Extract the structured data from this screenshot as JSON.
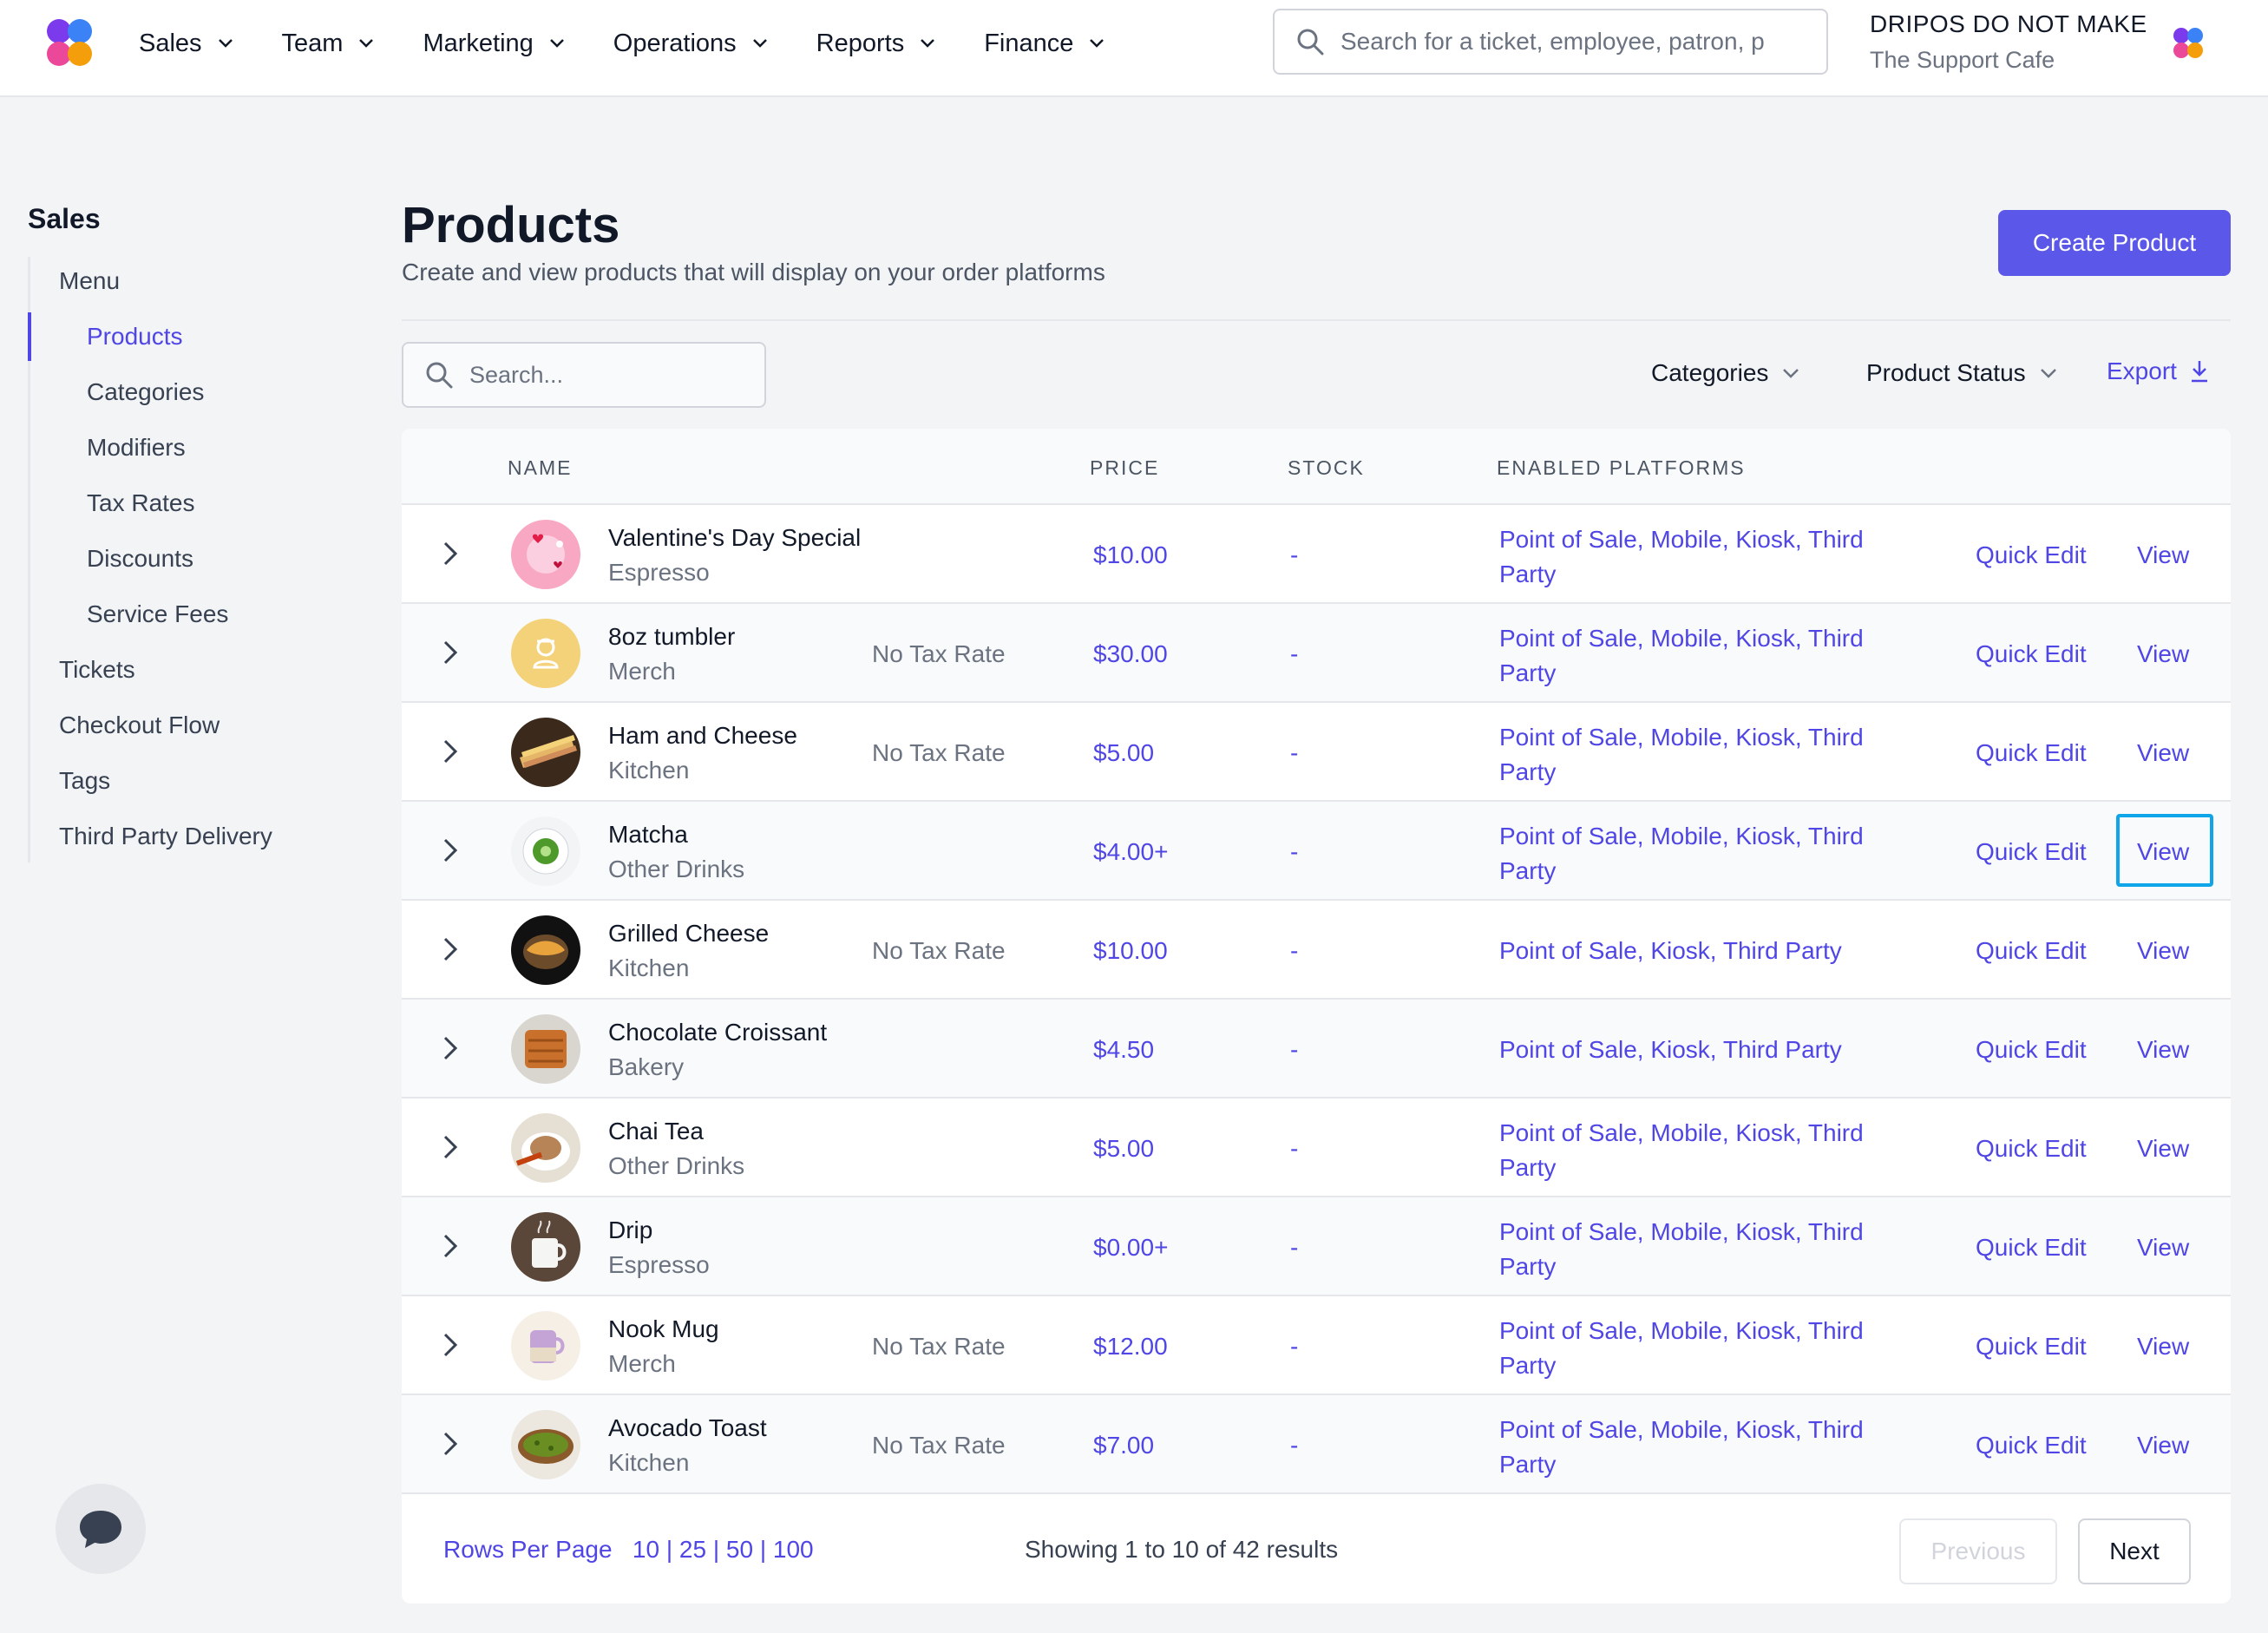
{
  "nav": {
    "items": [
      {
        "label": "Sales"
      },
      {
        "label": "Team"
      },
      {
        "label": "Marketing"
      },
      {
        "label": "Operations"
      },
      {
        "label": "Reports"
      },
      {
        "label": "Finance"
      }
    ],
    "search_placeholder": "Search for a ticket, employee, patron, p",
    "account_name": "DRIPOS DO NOT MAKE",
    "account_location": "The Support Cafe"
  },
  "sidebar": {
    "title": "Sales",
    "items": [
      {
        "label": "Menu"
      },
      {
        "label": "Products"
      },
      {
        "label": "Categories"
      },
      {
        "label": "Modifiers"
      },
      {
        "label": "Tax Rates"
      },
      {
        "label": "Discounts"
      },
      {
        "label": "Service Fees"
      },
      {
        "label": "Tickets"
      },
      {
        "label": "Checkout Flow"
      },
      {
        "label": "Tags"
      },
      {
        "label": "Third Party Delivery"
      }
    ]
  },
  "page": {
    "title": "Products",
    "subtitle": "Create and view products that will display on your order platforms",
    "create_label": "Create Product",
    "search_placeholder": "Search...",
    "filter_categories": "Categories",
    "filter_status": "Product Status",
    "export_label": "Export"
  },
  "table": {
    "headers": {
      "name": "NAME",
      "price": "PRICE",
      "stock": "STOCK",
      "platforms": "ENABLED PLATFORMS"
    },
    "quick_edit_label": "Quick Edit",
    "view_label": "View",
    "rows": [
      {
        "name": "Valentine's Day Special",
        "category": "Espresso",
        "tax": "",
        "price": "$10.00",
        "stock": "-",
        "platforms": "Point of Sale, Mobile, Kiosk, Third Party",
        "thumb": "valentine"
      },
      {
        "name": "8oz tumbler",
        "category": "Merch",
        "tax": "No Tax Rate",
        "price": "$30.00",
        "stock": "-",
        "platforms": "Point of Sale, Mobile, Kiosk, Third Party",
        "thumb": "placeholder"
      },
      {
        "name": "Ham and Cheese",
        "category": "Kitchen",
        "tax": "No Tax Rate",
        "price": "$5.00",
        "stock": "-",
        "platforms": "Point of Sale, Mobile, Kiosk, Third Party",
        "thumb": "sandwich"
      },
      {
        "name": "Matcha",
        "category": "Other Drinks",
        "tax": "",
        "price": "$4.00+",
        "stock": "-",
        "platforms": "Point of Sale, Mobile, Kiosk, Third Party",
        "thumb": "matcha"
      },
      {
        "name": "Grilled Cheese",
        "category": "Kitchen",
        "tax": "No Tax Rate",
        "price": "$10.00",
        "stock": "-",
        "platforms": "Point of Sale, Kiosk, Third Party",
        "thumb": "grilled"
      },
      {
        "name": "Chocolate Croissant",
        "category": "Bakery",
        "tax": "",
        "price": "$4.50",
        "stock": "-",
        "platforms": "Point of Sale, Kiosk, Third Party",
        "thumb": "croissant"
      },
      {
        "name": "Chai Tea",
        "category": "Other Drinks",
        "tax": "",
        "price": "$5.00",
        "stock": "-",
        "platforms": "Point of Sale, Mobile, Kiosk, Third Party",
        "thumb": "chai"
      },
      {
        "name": "Drip",
        "category": "Espresso",
        "tax": "",
        "price": "$0.00+",
        "stock": "-",
        "platforms": "Point of Sale, Mobile, Kiosk, Third Party",
        "thumb": "drip"
      },
      {
        "name": "Nook Mug",
        "category": "Merch",
        "tax": "No Tax Rate",
        "price": "$12.00",
        "stock": "-",
        "platforms": "Point of Sale, Mobile, Kiosk, Third Party",
        "thumb": "mug"
      },
      {
        "name": "Avocado Toast",
        "category": "Kitchen",
        "tax": "No Tax Rate",
        "price": "$7.00",
        "stock": "-",
        "platforms": "Point of Sale, Mobile, Kiosk, Third Party",
        "thumb": "avocado"
      }
    ]
  },
  "pagination": {
    "rows_per_page_label": "Rows Per Page",
    "options": [
      "10",
      "25",
      "50",
      "100"
    ],
    "showing": "Showing 1 to 10 of 42 results",
    "previous_label": "Previous",
    "next_label": "Next"
  },
  "colors": {
    "accent": "#4f46e5",
    "button": "#5b57e8",
    "focus": "#0ea5e9"
  }
}
